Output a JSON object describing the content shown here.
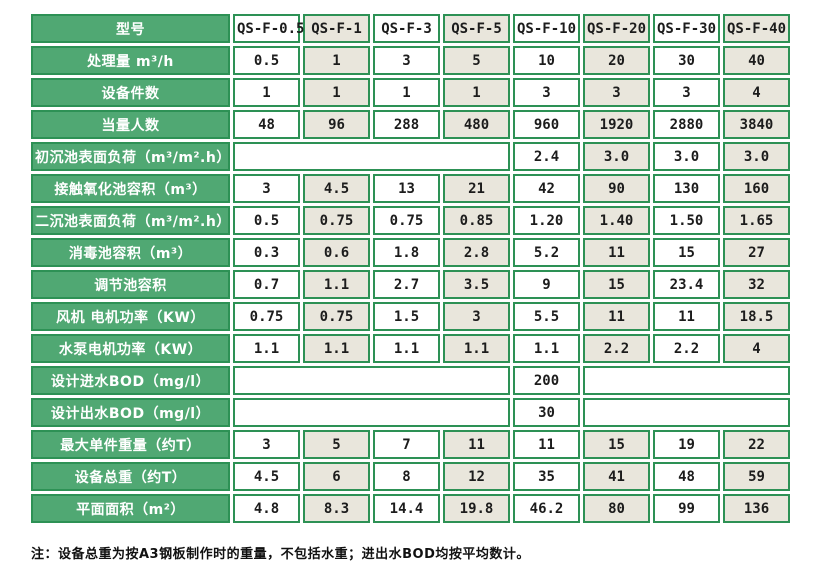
{
  "table": {
    "header": {
      "label": "型号",
      "models": [
        "QS-F-0.5",
        "QS-F-1",
        "QS-F-3",
        "QS-F-5",
        "QS-F-10",
        "QS-F-20",
        "QS-F-30",
        "QS-F-40"
      ]
    },
    "rows": [
      {
        "label": "处理量 m³/h",
        "cells": [
          {
            "v": "0.5"
          },
          {
            "v": "1"
          },
          {
            "v": "3"
          },
          {
            "v": "5"
          },
          {
            "v": "10"
          },
          {
            "v": "20"
          },
          {
            "v": "30"
          },
          {
            "v": "40"
          }
        ]
      },
      {
        "label": "设备件数",
        "cells": [
          {
            "v": "1"
          },
          {
            "v": "1"
          },
          {
            "v": "1"
          },
          {
            "v": "1"
          },
          {
            "v": "3"
          },
          {
            "v": "3"
          },
          {
            "v": "3"
          },
          {
            "v": "4"
          }
        ]
      },
      {
        "label": "当量人数",
        "cells": [
          {
            "v": "48"
          },
          {
            "v": "96"
          },
          {
            "v": "288"
          },
          {
            "v": "480"
          },
          {
            "v": "960"
          },
          {
            "v": "1920"
          },
          {
            "v": "2880"
          },
          {
            "v": "3840"
          }
        ]
      },
      {
        "label": "初沉池表面负荷（m³/m².h）",
        "cells": [
          {
            "v": "",
            "span": 4
          },
          {
            "v": "2.4"
          },
          {
            "v": "3.0"
          },
          {
            "v": "3.0"
          },
          {
            "v": "3.0"
          }
        ]
      },
      {
        "label": "接触氧化池容积（m³）",
        "cells": [
          {
            "v": "3"
          },
          {
            "v": "4.5"
          },
          {
            "v": "13"
          },
          {
            "v": "21"
          },
          {
            "v": "42"
          },
          {
            "v": "90"
          },
          {
            "v": "130"
          },
          {
            "v": "160"
          }
        ]
      },
      {
        "label": "二沉池表面负荷（m³/m².h）",
        "cells": [
          {
            "v": "0.5"
          },
          {
            "v": "0.75"
          },
          {
            "v": "0.75"
          },
          {
            "v": "0.85"
          },
          {
            "v": "1.20"
          },
          {
            "v": "1.40"
          },
          {
            "v": "1.50"
          },
          {
            "v": "1.65"
          }
        ]
      },
      {
        "label": "消毒池容积（m³）",
        "cells": [
          {
            "v": "0.3"
          },
          {
            "v": "0.6"
          },
          {
            "v": "1.8"
          },
          {
            "v": "2.8"
          },
          {
            "v": "5.2"
          },
          {
            "v": "11"
          },
          {
            "v": "15"
          },
          {
            "v": "27"
          }
        ]
      },
      {
        "label": "调节池容积",
        "cells": [
          {
            "v": "0.7"
          },
          {
            "v": "1.1"
          },
          {
            "v": "2.7"
          },
          {
            "v": "3.5"
          },
          {
            "v": "9"
          },
          {
            "v": "15"
          },
          {
            "v": "23.4"
          },
          {
            "v": "32"
          }
        ]
      },
      {
        "label": "风机 电机功率（KW）",
        "cells": [
          {
            "v": "0.75"
          },
          {
            "v": "0.75"
          },
          {
            "v": "1.5"
          },
          {
            "v": "3"
          },
          {
            "v": "5.5"
          },
          {
            "v": "11"
          },
          {
            "v": "11"
          },
          {
            "v": "18.5"
          }
        ]
      },
      {
        "label": "水泵电机功率（KW）",
        "cells": [
          {
            "v": "1.1"
          },
          {
            "v": "1.1"
          },
          {
            "v": "1.1"
          },
          {
            "v": "1.1"
          },
          {
            "v": "1.1"
          },
          {
            "v": "2.2"
          },
          {
            "v": "2.2"
          },
          {
            "v": "4"
          }
        ]
      },
      {
        "label": "设计进水BOD（mg/l）",
        "cells": [
          {
            "v": "",
            "span": 4
          },
          {
            "v": "200"
          },
          {
            "v": "",
            "span": 3
          }
        ]
      },
      {
        "label": "设计出水BOD（mg/l）",
        "cells": [
          {
            "v": "",
            "span": 4
          },
          {
            "v": "30"
          },
          {
            "v": "",
            "span": 3
          }
        ]
      },
      {
        "label": "最大单件重量（约T）",
        "cells": [
          {
            "v": "3"
          },
          {
            "v": "5"
          },
          {
            "v": "7"
          },
          {
            "v": "11"
          },
          {
            "v": "11"
          },
          {
            "v": "15"
          },
          {
            "v": "19"
          },
          {
            "v": "22"
          }
        ]
      },
      {
        "label": "设备总重（约T）",
        "cells": [
          {
            "v": "4.5"
          },
          {
            "v": "6"
          },
          {
            "v": "8"
          },
          {
            "v": "12"
          },
          {
            "v": "35"
          },
          {
            "v": "41"
          },
          {
            "v": "48"
          },
          {
            "v": "59"
          }
        ]
      },
      {
        "label": "平面面积（m²）",
        "cells": [
          {
            "v": "4.8"
          },
          {
            "v": "8.3"
          },
          {
            "v": "14.4"
          },
          {
            "v": "19.8"
          },
          {
            "v": "46.2"
          },
          {
            "v": "80"
          },
          {
            "v": "99"
          },
          {
            "v": "136"
          }
        ]
      }
    ],
    "note": "注：设备总重为按A3钢板制作时的重量，不包括水重；进出水BOD均按平均数计。"
  },
  "colors": {
    "label_green_fill": "#50a873",
    "cell_border_green": "#2d9155",
    "alt_cell_beige": "#e9e6dc",
    "cell_white": "#ffffff",
    "value_text": "#1c1c1c",
    "label_text": "#ffffff"
  }
}
